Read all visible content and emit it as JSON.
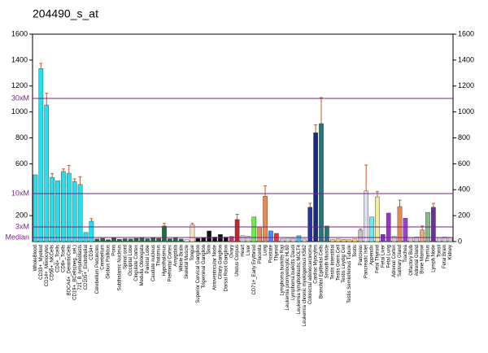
{
  "chart_data": {
    "type": "bar",
    "title": "204490_s_at",
    "categories": [
      "WholeBlood",
      "CD33+_Myeloid",
      "CD14+_Monocytes",
      "CD56+_NKCells",
      "CD4+_Tcells",
      "CD8+_Tcells",
      "BDCA4+_DentriticCells",
      "CD19+_BCells(neg._sel.)",
      "721_B_lymphoblasts",
      "CD105+_Endothelial",
      "CD34+",
      "Cerebellum Peduncles",
      "Cerebellum",
      "Globus Pallidus",
      "Pons",
      "Subthalamic Nucleus",
      "Spinal cord",
      "Occipital Lobe",
      "Cingulate Cortex",
      "Medulla Oblongata",
      "Parietal Lobe",
      "Caudate nucleus",
      "Thalamus",
      "Hypothalamus",
      "Prefrontal Cortex",
      "Amygdala",
      "Whole Brain",
      "Skeletal Muscle",
      "Tongue",
      "Superior Cervical Ganglion",
      "Trigeminal Ganglion",
      "Skin",
      "Atrioventricular Node",
      "Ciliary Ganglion",
      "Dorsal Root Ganglion",
      "Ovary",
      "Uterus Corpus",
      "Heart",
      "Liver",
      "CD71+_Early Erythroid",
      "Placenta",
      "Lung",
      "Prostate",
      "Thyroid",
      "Lymphoma burkitts Raji",
      "Leukemia promyelocytic HL60",
      "Lymphoma burkitts Daudi",
      "Leukemia lymphoblastic MOLT4",
      "Leukemia chronic myelogenous K562",
      "Colorectal adenocarcinoma",
      "Cardiac Myocytes",
      "Bronchial Epithelial Cells",
      "Smooth Muscle",
      "Testis Interstitial",
      "Testis Germ Cell",
      "Testis Leydig Cell",
      "Testis Seminiferous Tubule",
      "Testis",
      "Pancreas",
      "Pancreatic Islet",
      "Appendix",
      "Fetal Thyroid",
      "Fetal Liver",
      "Fetal Lung",
      "Adrenal Cortex",
      "Salivary Gland",
      "Trachea",
      "Olfactory Bulb",
      "Adrenal Gland",
      "Bone Marrow",
      "Thymus",
      "Lymph Node",
      "Tonsil",
      "Fetal Brain",
      "Kidney"
    ],
    "values": [
      515,
      1335,
      1054,
      495,
      470,
      540,
      527,
      464,
      440,
      70,
      157,
      20,
      25,
      15,
      28,
      18,
      22,
      20,
      25,
      30,
      22,
      28,
      25,
      120,
      22,
      28,
      20,
      15,
      130,
      25,
      30,
      82,
      35,
      55,
      35,
      40,
      170,
      45,
      40,
      190,
      115,
      350,
      82,
      63,
      20,
      30,
      25,
      45,
      20,
      265,
      840,
      910,
      120,
      15,
      20,
      18,
      15,
      20,
      88,
      390,
      190,
      345,
      55,
      220,
      40,
      270,
      180,
      30,
      35,
      90,
      225,
      265,
      30,
      35,
      30
    ],
    "errors": [
      0,
      40,
      90,
      30,
      0,
      20,
      60,
      20,
      60,
      0,
      20,
      0,
      0,
      0,
      0,
      0,
      0,
      0,
      0,
      0,
      0,
      0,
      0,
      20,
      0,
      0,
      0,
      0,
      10,
      0,
      0,
      0,
      0,
      0,
      0,
      0,
      40,
      0,
      0,
      0,
      0,
      80,
      0,
      0,
      0,
      0,
      0,
      0,
      0,
      30,
      60,
      200,
      0,
      0,
      0,
      0,
      0,
      0,
      10,
      200,
      0,
      40,
      0,
      0,
      0,
      50,
      0,
      0,
      0,
      30,
      0,
      30,
      0,
      0,
      0
    ],
    "colors": [
      "#22e0ee",
      "#22e0ee",
      "#22e0ee",
      "#22e0ee",
      "#22e0ee",
      "#22e0ee",
      "#22e0ee",
      "#22e0ee",
      "#22e0ee",
      "#22e0ee",
      "#22e0ee",
      "#1f6b3a",
      "#1f6b3a",
      "#1f6b3a",
      "#1f6b3a",
      "#1f6b3a",
      "#1f6b3a",
      "#1f6b3a",
      "#1f6b3a",
      "#1f6b3a",
      "#1f6b3a",
      "#1f6b3a",
      "#1f6b3a",
      "#1f6b3a",
      "#1f6b3a",
      "#1f6b3a",
      "#1f6b3a",
      "#eeeeee",
      "#f3e3c3",
      "#111111",
      "#111111",
      "#111111",
      "#111111",
      "#111111",
      "#111111",
      "#cc3366",
      "#cc2222",
      "#cccccc",
      "#cccccc",
      "#66ee44",
      "#ee8855",
      "#ee8855",
      "#4488ff",
      "#ee3333",
      "#cccccc",
      "#cccccc",
      "#cccccc",
      "#22ccee",
      "#cccccc",
      "#2233aa",
      "#1a2a80",
      "#227777",
      "#227777",
      "#ffcc66",
      "#ffcc66",
      "#ffcc66",
      "#ffcc66",
      "#ffcc66",
      "#ccbbcc",
      "#ddddee",
      "#66eeee",
      "#eeee99",
      "#8833cc",
      "#9933cc",
      "#cccccc",
      "#ee8844",
      "#9944cc",
      "#cccccc",
      "#cccccc",
      "#eeaa77",
      "#88bb88",
      "#663399",
      "#cccccc",
      "#cccccc",
      "#cccccc"
    ],
    "error_color": "#cc5522",
    "ylim": [
      0,
      1600
    ],
    "yticks": [
      200,
      600,
      800,
      1000,
      1200,
      1400,
      1600
    ],
    "y2lim": [
      0,
      1600
    ],
    "y2ticks": [
      0,
      200,
      400,
      600,
      800,
      1000,
      1200,
      1400,
      1600
    ],
    "reference_lines": [
      {
        "label": "30xM",
        "value": 1104
      },
      {
        "label": "10xM",
        "value": 370
      },
      {
        "label": "3xM",
        "value": 113
      },
      {
        "label": "Median",
        "value": 31
      }
    ],
    "reference_color": "#7a1f8c"
  }
}
